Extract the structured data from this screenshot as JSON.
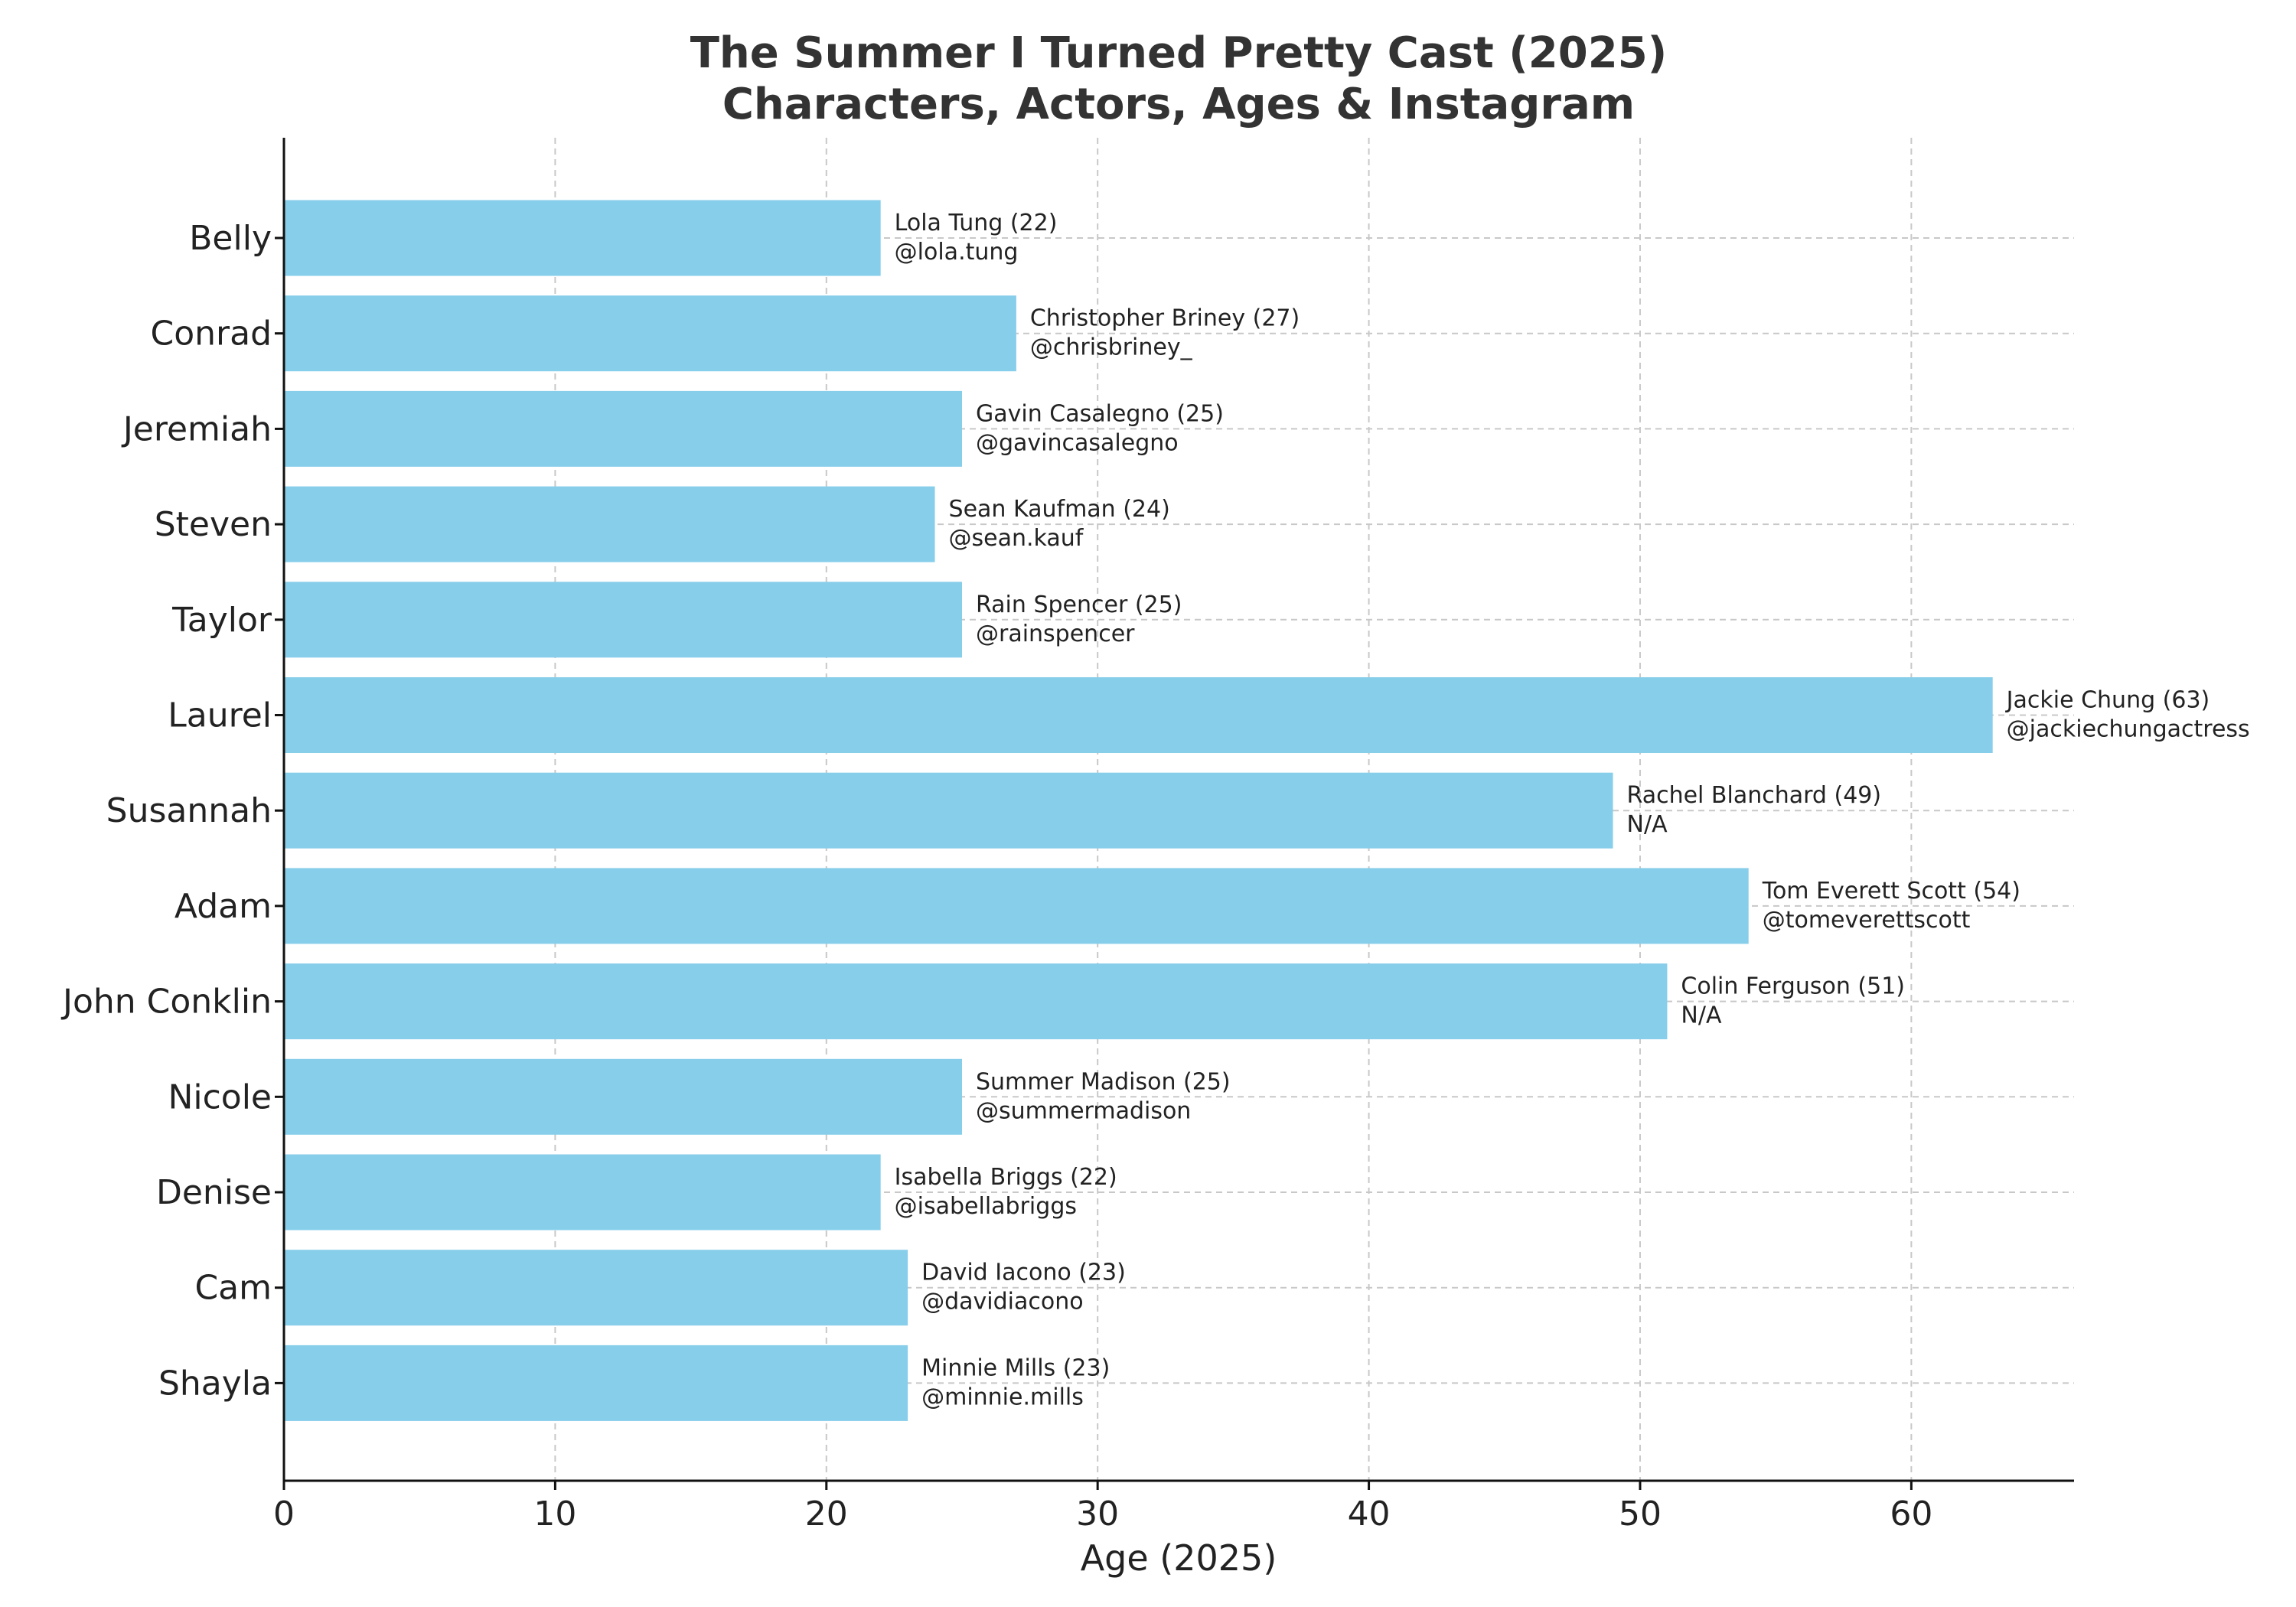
{
  "chart_data": {
    "type": "bar",
    "orientation": "horizontal",
    "title": "The Summer I Turned Pretty Cast (2025)",
    "subtitle": "Characters, Actors, Ages & Instagram",
    "xlabel": "Age (2025)",
    "ylabel": "",
    "xlim": [
      0,
      66
    ],
    "xticks": [
      0,
      10,
      20,
      30,
      40,
      50,
      60
    ],
    "grid": true,
    "bar_color": "#87CEEB",
    "categories": [
      "Belly",
      "Conrad",
      "Jeremiah",
      "Steven",
      "Taylor",
      "Laurel",
      "Susannah",
      "Adam",
      "John Conklin",
      "Nicole",
      "Denise",
      "Cam",
      "Shayla"
    ],
    "values": [
      22,
      27,
      25,
      24,
      25,
      63,
      49,
      54,
      51,
      25,
      22,
      23,
      23
    ],
    "annotations": [
      {
        "actor": "Lola Tung (22)",
        "instagram": "@lola.tung"
      },
      {
        "actor": "Christopher Briney (27)",
        "instagram": "@chrisbriney_"
      },
      {
        "actor": "Gavin Casalegno (25)",
        "instagram": "@gavincasalegno"
      },
      {
        "actor": "Sean Kaufman (24)",
        "instagram": "@sean.kauf"
      },
      {
        "actor": "Rain Spencer (25)",
        "instagram": "@rainspencer"
      },
      {
        "actor": "Jackie Chung (63)",
        "instagram": "@jackiechungactress"
      },
      {
        "actor": "Rachel Blanchard (49)",
        "instagram": "N/A"
      },
      {
        "actor": "Tom Everett Scott (54)",
        "instagram": "@tomeverettscott"
      },
      {
        "actor": "Colin Ferguson (51)",
        "instagram": "N/A"
      },
      {
        "actor": "Summer Madison (25)",
        "instagram": "@summermadison"
      },
      {
        "actor": "Isabella Briggs (22)",
        "instagram": "@isabellabriggs"
      },
      {
        "actor": "David Iacono (23)",
        "instagram": "@davidiacono"
      },
      {
        "actor": "Minnie Mills (23)",
        "instagram": "@minnie.mills"
      }
    ]
  }
}
